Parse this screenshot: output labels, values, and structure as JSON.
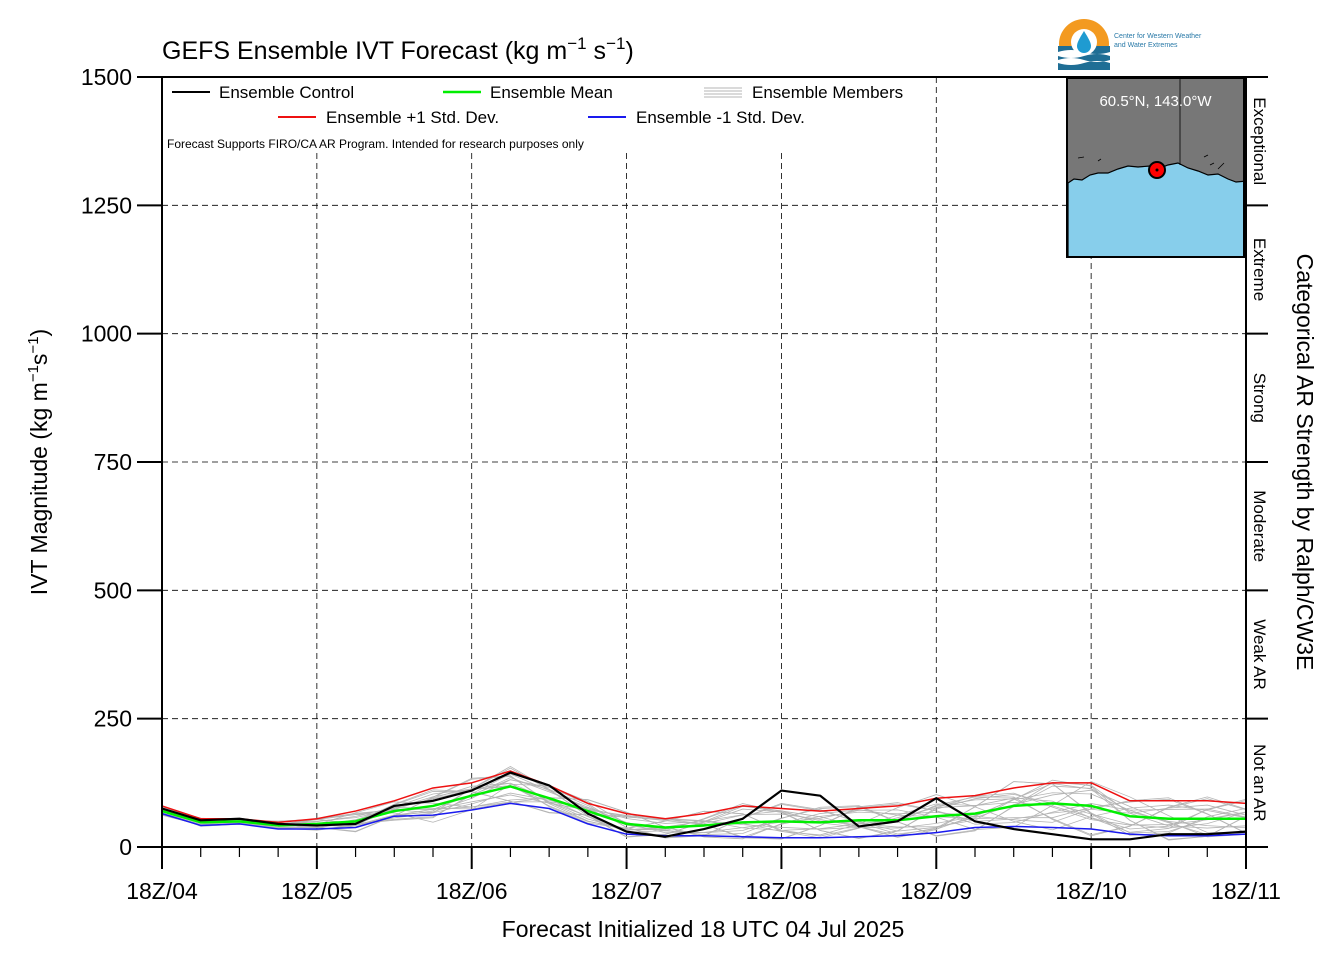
{
  "chart_data": {
    "type": "line",
    "title": "GEFS Ensemble IVT Forecast (kg m",
    "title_sup1": "−1",
    "title_mid": " s",
    "title_sup2": "−1",
    "title_end": ")",
    "ylabel": "IVT Magnitude (kg m",
    "ylabel_sup1": "−1",
    "ylabel_mid": "s",
    "ylabel_sup2": "−1",
    "ylabel_end": ")",
    "xlabel": "Forecast Initialized 18 UTC 04 Jul 2025",
    "right_label": "Categorical AR Strength by Ralph/CW3E",
    "note": "Forecast Supports FIRO/CA AR Program. Intended for research purposes only",
    "xlim": [
      0,
      168
    ],
    "ylim": [
      0,
      1500
    ],
    "x_ticks": [
      0,
      24,
      48,
      72,
      96,
      120,
      144,
      168
    ],
    "x_tick_labels": [
      "18Z/04",
      "18Z/05",
      "18Z/06",
      "18Z/07",
      "18Z/08",
      "18Z/09",
      "18Z/10",
      "18Z/11"
    ],
    "y_ticks": [
      0,
      250,
      500,
      750,
      1000,
      1250,
      1500
    ],
    "y_tick_labels": [
      "0",
      "250",
      "500",
      "750",
      "1000",
      "1250",
      "1500"
    ],
    "grid": true,
    "legend_placement": "top-left",
    "categories_ar": [
      {
        "label": "Not an AR",
        "from": 0,
        "to": 250
      },
      {
        "label": "Weak AR",
        "from": 250,
        "to": 500
      },
      {
        "label": "Moderate",
        "from": 500,
        "to": 750
      },
      {
        "label": "Strong",
        "from": 750,
        "to": 1000
      },
      {
        "label": "Extreme",
        "from": 1000,
        "to": 1250
      },
      {
        "label": "Exceptional",
        "from": 1250,
        "to": 1500
      }
    ],
    "series": [
      {
        "name": "Ensemble Control",
        "color": "#000000",
        "x": [
          0,
          6,
          12,
          18,
          24,
          30,
          36,
          42,
          48,
          54,
          60,
          66,
          72,
          78,
          84,
          90,
          96,
          102,
          108,
          114,
          120,
          126,
          132,
          138,
          144,
          150,
          156,
          162,
          168
        ],
        "y": [
          75,
          52,
          55,
          45,
          42,
          45,
          80,
          90,
          110,
          145,
          120,
          65,
          30,
          20,
          35,
          55,
          110,
          100,
          40,
          50,
          95,
          50,
          35,
          25,
          15,
          15,
          25,
          25,
          30
        ]
      },
      {
        "name": "Ensemble Mean",
        "color": "#00ee00",
        "x": [
          0,
          6,
          12,
          18,
          24,
          30,
          36,
          42,
          48,
          54,
          60,
          66,
          72,
          78,
          84,
          90,
          96,
          102,
          108,
          114,
          120,
          126,
          132,
          138,
          144,
          150,
          156,
          162,
          168
        ],
        "y": [
          70,
          48,
          50,
          42,
          45,
          50,
          70,
          80,
          100,
          118,
          95,
          70,
          45,
          38,
          42,
          48,
          50,
          48,
          52,
          52,
          60,
          65,
          80,
          85,
          80,
          60,
          55,
          55,
          55
        ]
      },
      {
        "name": "Ensemble +1 Std. Dev.",
        "color": "#ee1111",
        "x": [
          0,
          6,
          12,
          18,
          24,
          30,
          36,
          42,
          48,
          54,
          60,
          66,
          72,
          78,
          84,
          90,
          96,
          102,
          108,
          114,
          120,
          126,
          132,
          138,
          144,
          150,
          156,
          162,
          168
        ],
        "y": [
          80,
          55,
          55,
          48,
          55,
          70,
          90,
          115,
          125,
          148,
          120,
          85,
          65,
          55,
          65,
          80,
          75,
          70,
          75,
          80,
          95,
          100,
          115,
          125,
          125,
          90,
          90,
          90,
          85
        ]
      },
      {
        "name": "Ensemble -1 Std. Dev.",
        "color": "#1a1aee",
        "x": [
          0,
          6,
          12,
          18,
          24,
          30,
          36,
          42,
          48,
          54,
          60,
          66,
          72,
          78,
          84,
          90,
          96,
          102,
          108,
          114,
          120,
          126,
          132,
          138,
          144,
          150,
          156,
          162,
          168
        ],
        "y": [
          65,
          42,
          45,
          35,
          35,
          38,
          60,
          62,
          72,
          85,
          75,
          45,
          25,
          22,
          22,
          20,
          18,
          18,
          20,
          22,
          28,
          38,
          40,
          38,
          35,
          25,
          22,
          22,
          25
        ]
      }
    ],
    "members_name": "Ensemble Members",
    "members_color": "#b4b4b4"
  },
  "inset": {
    "location_label": "60.5°N, 143.0°W",
    "ocean_color": "#87ceeb",
    "land_color": "#777777",
    "marker_color": "#ff0000"
  },
  "logo": {
    "line1": "Center for Western Weather",
    "line2": "and Water Extremes"
  }
}
